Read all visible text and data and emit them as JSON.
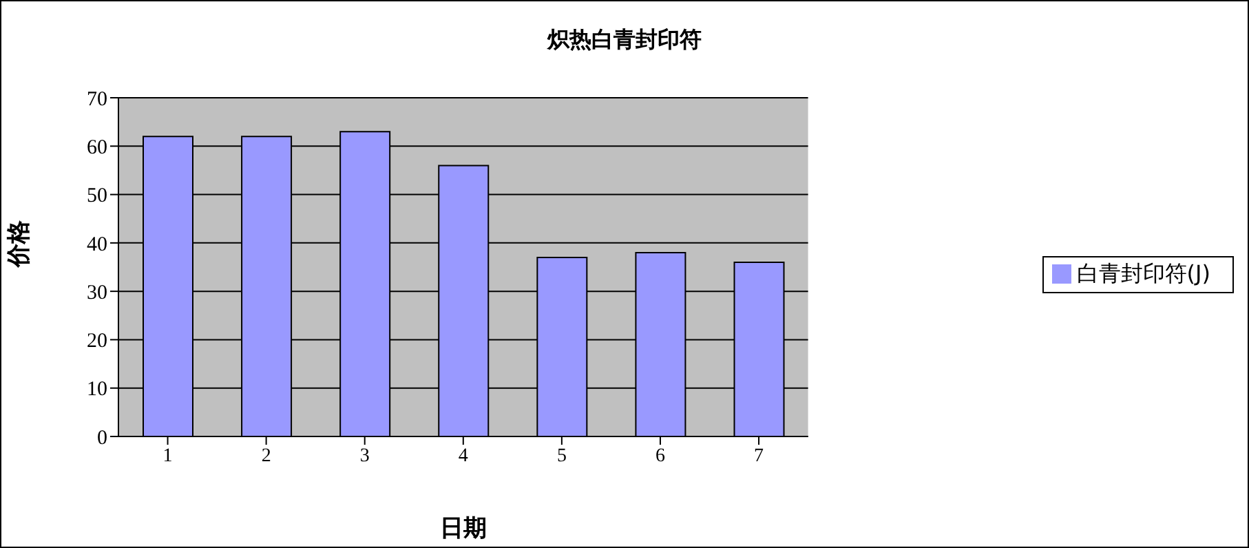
{
  "chart_data": {
    "type": "bar",
    "title": "炽热白青封印符",
    "xlabel": "日期",
    "ylabel": "价格",
    "categories": [
      "1",
      "2",
      "3",
      "4",
      "5",
      "6",
      "7"
    ],
    "series": [
      {
        "name": "白青封印符(J)",
        "color": "#9999ff",
        "values": [
          62,
          62,
          63,
          56,
          37,
          38,
          36
        ]
      }
    ],
    "ylim": [
      0,
      70
    ],
    "yticks": [
      0,
      10,
      20,
      30,
      40,
      50,
      60,
      70
    ],
    "grid": "y",
    "legend": "right"
  }
}
